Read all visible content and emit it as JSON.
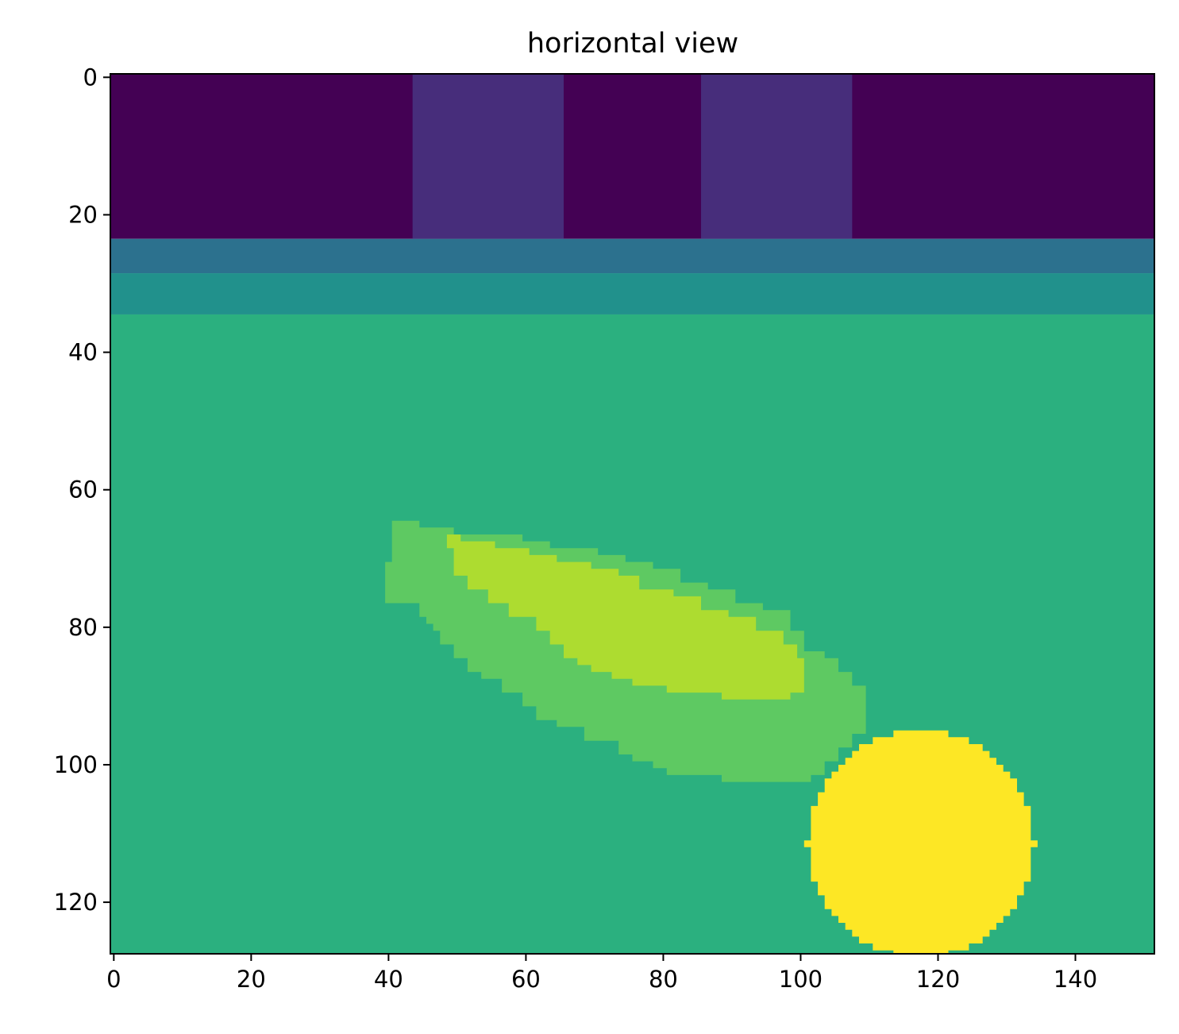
{
  "chart_data": {
    "type": "heatmap",
    "title": "horizontal view",
    "xlabel": "",
    "ylabel": "",
    "xlim": [
      -0.5,
      151.5
    ],
    "ylim": [
      127.5,
      -0.5
    ],
    "xticks": [
      0,
      20,
      40,
      60,
      80,
      100,
      120,
      140
    ],
    "yticks": [
      0,
      20,
      40,
      60,
      80,
      100,
      120
    ],
    "colormap": "viridis",
    "colors": {
      "level0": "#440154",
      "level1": "#472d7b",
      "level2": "#2c718e",
      "level3": "#21918c",
      "level4": "#2bb07f",
      "level5": "#5ec962",
      "level6": "#addc30",
      "level7": "#fde725"
    },
    "regions": [
      {
        "name": "top band",
        "level": "level0",
        "x": [
          -0.5,
          151.5
        ],
        "y": [
          -0.5,
          23.5
        ]
      },
      {
        "name": "block 1",
        "level": "level1",
        "x": [
          43.5,
          65.5
        ],
        "y": [
          -0.5,
          23.5
        ]
      },
      {
        "name": "block 2",
        "level": "level1",
        "x": [
          85.5,
          107.5
        ],
        "y": [
          -0.5,
          23.5
        ]
      },
      {
        "name": "layer 1",
        "level": "level2",
        "x": [
          -0.5,
          151.5
        ],
        "y": [
          23.5,
          28.5
        ]
      },
      {
        "name": "layer 2",
        "level": "level3",
        "x": [
          -0.5,
          151.5
        ],
        "y": [
          28.5,
          34.5
        ]
      },
      {
        "name": "background",
        "level": "level4",
        "x": [
          -0.5,
          151.5
        ],
        "y": [
          34.5,
          127.5
        ]
      }
    ],
    "blobs": [
      {
        "name": "outer elongated blob",
        "level": "level5",
        "outline": [
          [
            40.5,
            64.5
          ],
          [
            44.5,
            64.5
          ],
          [
            44.5,
            65.5
          ],
          [
            49.5,
            65.5
          ],
          [
            49.5,
            66.5
          ],
          [
            59.5,
            66.5
          ],
          [
            59.5,
            67.5
          ],
          [
            63.5,
            67.5
          ],
          [
            63.5,
            68.5
          ],
          [
            70.5,
            68.5
          ],
          [
            70.5,
            69.5
          ],
          [
            74.5,
            69.5
          ],
          [
            74.5,
            70.5
          ],
          [
            78.5,
            70.5
          ],
          [
            78.5,
            71.5
          ],
          [
            82.5,
            71.5
          ],
          [
            82.5,
            73.5
          ],
          [
            86.5,
            73.5
          ],
          [
            86.5,
            74.5
          ],
          [
            90.5,
            74.5
          ],
          [
            90.5,
            76.5
          ],
          [
            94.5,
            76.5
          ],
          [
            94.5,
            77.5
          ],
          [
            98.5,
            77.5
          ],
          [
            98.5,
            80.5
          ],
          [
            100.5,
            80.5
          ],
          [
            100.5,
            83.5
          ],
          [
            103.5,
            83.5
          ],
          [
            103.5,
            84.5
          ],
          [
            105.5,
            84.5
          ],
          [
            105.5,
            86.5
          ],
          [
            107.5,
            86.5
          ],
          [
            107.5,
            88.5
          ],
          [
            109.5,
            88.5
          ],
          [
            109.5,
            95.5
          ],
          [
            107.5,
            95.5
          ],
          [
            107.5,
            97.5
          ],
          [
            105.5,
            97.5
          ],
          [
            105.5,
            99.5
          ],
          [
            103.5,
            99.5
          ],
          [
            103.5,
            101.5
          ],
          [
            101.5,
            101.5
          ],
          [
            101.5,
            102.5
          ],
          [
            88.5,
            102.5
          ],
          [
            88.5,
            101.5
          ],
          [
            80.5,
            101.5
          ],
          [
            80.5,
            100.5
          ],
          [
            78.5,
            100.5
          ],
          [
            78.5,
            99.5
          ],
          [
            75.5,
            99.5
          ],
          [
            75.5,
            98.5
          ],
          [
            73.5,
            98.5
          ],
          [
            73.5,
            96.5
          ],
          [
            68.5,
            96.5
          ],
          [
            68.5,
            94.5
          ],
          [
            64.5,
            94.5
          ],
          [
            64.5,
            93.5
          ],
          [
            61.5,
            93.5
          ],
          [
            61.5,
            91.5
          ],
          [
            59.5,
            91.5
          ],
          [
            59.5,
            89.5
          ],
          [
            56.5,
            89.5
          ],
          [
            56.5,
            87.5
          ],
          [
            53.5,
            87.5
          ],
          [
            53.5,
            86.5
          ],
          [
            51.5,
            86.5
          ],
          [
            51.5,
            84.5
          ],
          [
            49.5,
            84.5
          ],
          [
            49.5,
            82.5
          ],
          [
            47.5,
            82.5
          ],
          [
            47.5,
            80.5
          ],
          [
            46.5,
            80.5
          ],
          [
            46.5,
            79.5
          ],
          [
            45.5,
            79.5
          ],
          [
            45.5,
            78.5
          ],
          [
            44.5,
            78.5
          ],
          [
            44.5,
            76.5
          ],
          [
            39.5,
            76.5
          ],
          [
            39.5,
            70.5
          ],
          [
            40.5,
            70.5
          ]
        ]
      },
      {
        "name": "inner elongated blob",
        "level": "level6",
        "outline": [
          [
            48.5,
            66.5
          ],
          [
            50.5,
            66.5
          ],
          [
            50.5,
            67.5
          ],
          [
            55.5,
            67.5
          ],
          [
            55.5,
            68.5
          ],
          [
            60.5,
            68.5
          ],
          [
            60.5,
            69.5
          ],
          [
            64.5,
            69.5
          ],
          [
            64.5,
            70.5
          ],
          [
            69.5,
            70.5
          ],
          [
            69.5,
            71.5
          ],
          [
            73.5,
            71.5
          ],
          [
            73.5,
            72.5
          ],
          [
            76.5,
            72.5
          ],
          [
            76.5,
            74.5
          ],
          [
            81.5,
            74.5
          ],
          [
            81.5,
            75.5
          ],
          [
            85.5,
            75.5
          ],
          [
            85.5,
            77.5
          ],
          [
            89.5,
            77.5
          ],
          [
            89.5,
            78.5
          ],
          [
            93.5,
            78.5
          ],
          [
            93.5,
            80.5
          ],
          [
            97.5,
            80.5
          ],
          [
            97.5,
            82.5
          ],
          [
            99.5,
            82.5
          ],
          [
            99.5,
            84.5
          ],
          [
            100.5,
            84.5
          ],
          [
            100.5,
            89.5
          ],
          [
            98.5,
            89.5
          ],
          [
            98.5,
            90.5
          ],
          [
            88.5,
            90.5
          ],
          [
            88.5,
            89.5
          ],
          [
            80.5,
            89.5
          ],
          [
            80.5,
            88.5
          ],
          [
            75.5,
            88.5
          ],
          [
            75.5,
            87.5
          ],
          [
            72.5,
            87.5
          ],
          [
            72.5,
            86.5
          ],
          [
            69.5,
            86.5
          ],
          [
            69.5,
            85.5
          ],
          [
            67.5,
            85.5
          ],
          [
            67.5,
            84.5
          ],
          [
            65.5,
            84.5
          ],
          [
            65.5,
            82.5
          ],
          [
            63.5,
            82.5
          ],
          [
            63.5,
            80.5
          ],
          [
            61.5,
            80.5
          ],
          [
            61.5,
            78.5
          ],
          [
            57.5,
            78.5
          ],
          [
            57.5,
            76.5
          ],
          [
            54.5,
            76.5
          ],
          [
            54.5,
            74.5
          ],
          [
            51.5,
            74.5
          ],
          [
            51.5,
            72.5
          ],
          [
            49.5,
            72.5
          ],
          [
            49.5,
            68.5
          ],
          [
            48.5,
            68.5
          ]
        ]
      },
      {
        "name": "disc",
        "level": "level7",
        "center": [
          117.5,
          111.5
        ],
        "radius": 16.5
      }
    ]
  }
}
